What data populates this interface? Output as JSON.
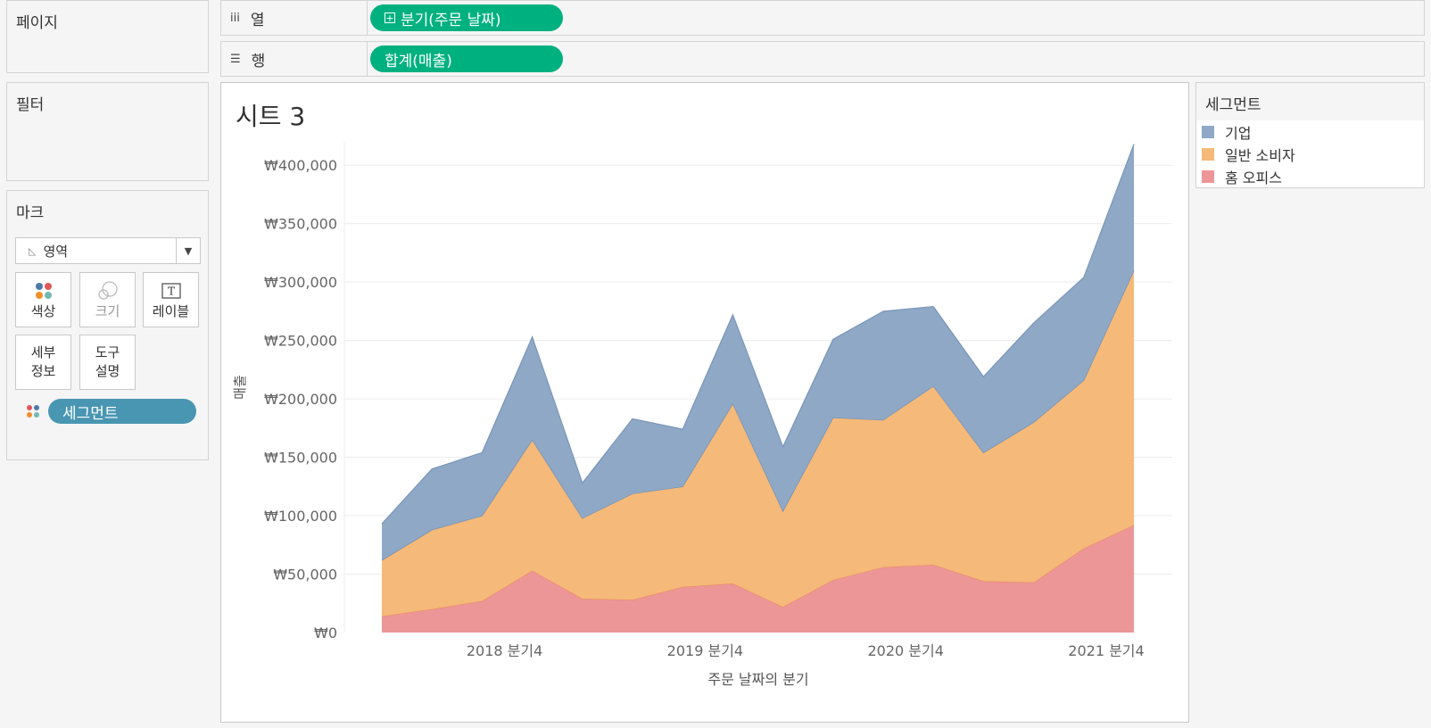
{
  "pages_panel": {
    "title": "페이지"
  },
  "filters_panel": {
    "title": "필터"
  },
  "marks_panel": {
    "title": "마크",
    "mark_type": "영역",
    "buttons": {
      "color": "색상",
      "size": "크기",
      "label": "레이블",
      "detail_line1": "세부",
      "detail_line2": "정보",
      "tooltip_line1": "도구",
      "tooltip_line2": "설명"
    },
    "field_pill": "세그먼트"
  },
  "shelves": {
    "columns": {
      "label": "열",
      "icon": "columns-icon",
      "pill": "분기(주문 날짜)"
    },
    "rows": {
      "label": "행",
      "icon": "rows-icon",
      "pill": "합계(매출)"
    }
  },
  "sheet": {
    "title": "시트 3"
  },
  "legend": {
    "title": "세그먼트",
    "items": [
      {
        "label": "기업",
        "color": "#8ea8c6"
      },
      {
        "label": "일반 소비자",
        "color": "#f5b979"
      },
      {
        "label": "홈 오피스",
        "color": "#ec9698"
      }
    ]
  },
  "colors": {
    "accent_pill": "#00b180",
    "segment_pill": "#4996b2",
    "corporate": "#8ea8c6",
    "consumer": "#f5b979",
    "home_office": "#ec9698"
  },
  "chart_data": {
    "type": "area",
    "stacked": true,
    "xlabel": "주문 날짜의 분기",
    "ylabel": "매출",
    "ylim": [
      0,
      420000
    ],
    "y_ticks": [
      {
        "value": 0,
        "label": "₩0"
      },
      {
        "value": 50000,
        "label": "₩50,000"
      },
      {
        "value": 100000,
        "label": "₩100,000"
      },
      {
        "value": 150000,
        "label": "₩150,000"
      },
      {
        "value": 200000,
        "label": "₩200,000"
      },
      {
        "value": 250000,
        "label": "₩250,000"
      },
      {
        "value": 300000,
        "label": "₩300,000"
      },
      {
        "value": 350000,
        "label": "₩350,000"
      },
      {
        "value": 400000,
        "label": "₩400,000"
      }
    ],
    "x": [
      "2018 분기1",
      "2018 분기2",
      "2018 분기3",
      "2018 분기4",
      "2019 분기1",
      "2019 분기2",
      "2019 분기3",
      "2019 분기4",
      "2020 분기1",
      "2020 분기2",
      "2020 분기3",
      "2020 분기4",
      "2021 분기1",
      "2021 분기2",
      "2021 분기3",
      "2021 분기4"
    ],
    "x_tick_labels": [
      {
        "index": 3,
        "label": "2018 분기4"
      },
      {
        "index": 7,
        "label": "2019 분기4"
      },
      {
        "index": 11,
        "label": "2020 분기4"
      },
      {
        "index": 15,
        "label": "2021 분기4"
      }
    ],
    "series": [
      {
        "name": "홈 오피스",
        "color": "#ec9698",
        "values": [
          14000,
          20000,
          27000,
          53000,
          29000,
          28000,
          39000,
          42000,
          22000,
          45000,
          56000,
          58000,
          44000,
          43000,
          72000,
          92000
        ]
      },
      {
        "name": "일반 소비자",
        "color": "#f5b979",
        "values": [
          48000,
          68000,
          73000,
          112000,
          69000,
          91000,
          86000,
          154000,
          82000,
          139000,
          126000,
          153000,
          110000,
          137000,
          144000,
          218000
        ]
      },
      {
        "name": "기업",
        "color": "#8ea8c6",
        "values": [
          31000,
          52000,
          54000,
          88000,
          30000,
          64000,
          49000,
          76000,
          55000,
          67000,
          93000,
          68000,
          65000,
          85000,
          88000,
          108000
        ]
      }
    ]
  }
}
